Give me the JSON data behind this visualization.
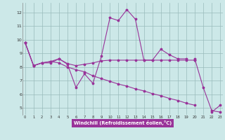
{
  "xlabel": "Windchill (Refroidissement éolien,°C)",
  "background_color": "#cce8e8",
  "line_color": "#993399",
  "grid_color": "#99bbbb",
  "x_ticks": [
    0,
    1,
    2,
    3,
    4,
    5,
    6,
    7,
    8,
    9,
    10,
    11,
    12,
    13,
    14,
    15,
    16,
    17,
    18,
    19,
    20,
    21,
    22,
    23
  ],
  "y_ticks": [
    5,
    6,
    7,
    8,
    9,
    10,
    11,
    12
  ],
  "ylim": [
    4.5,
    12.7
  ],
  "xlim": [
    -0.3,
    23.3
  ],
  "series": [
    [
      9.8,
      8.1,
      8.3,
      8.3,
      8.6,
      8.2,
      6.5,
      7.5,
      6.8,
      8.8,
      11.6,
      11.4,
      12.2,
      11.5,
      8.5,
      8.5,
      9.3,
      8.9,
      8.6,
      8.6,
      null,
      null,
      null,
      null
    ],
    [
      null,
      null,
      null,
      null,
      null,
      null,
      null,
      null,
      null,
      null,
      null,
      null,
      null,
      null,
      null,
      null,
      null,
      null,
      null,
      null,
      8.5,
      null,
      null,
      null
    ],
    [
      9.8,
      8.1,
      8.3,
      8.4,
      8.6,
      8.25,
      8.1,
      8.2,
      8.3,
      8.45,
      8.5,
      8.5,
      8.5,
      8.5,
      8.5,
      8.5,
      8.5,
      8.5,
      8.5,
      8.5,
      8.5,
      null,
      null,
      null
    ],
    [
      9.8,
      8.1,
      8.3,
      8.4,
      8.3,
      8.0,
      7.8,
      7.65,
      7.35,
      7.15,
      6.95,
      6.75,
      6.6,
      6.4,
      6.25,
      6.05,
      5.9,
      5.7,
      5.55,
      5.35,
      5.2,
      null,
      null,
      null
    ],
    [
      null,
      null,
      null,
      null,
      null,
      null,
      null,
      null,
      null,
      null,
      null,
      null,
      null,
      null,
      null,
      null,
      null,
      null,
      null,
      null,
      8.6,
      6.5,
      4.8,
      4.7
    ],
    [
      null,
      null,
      null,
      null,
      null,
      null,
      null,
      null,
      null,
      null,
      null,
      null,
      null,
      null,
      null,
      null,
      null,
      null,
      null,
      null,
      null,
      null,
      4.7,
      5.2
    ]
  ]
}
